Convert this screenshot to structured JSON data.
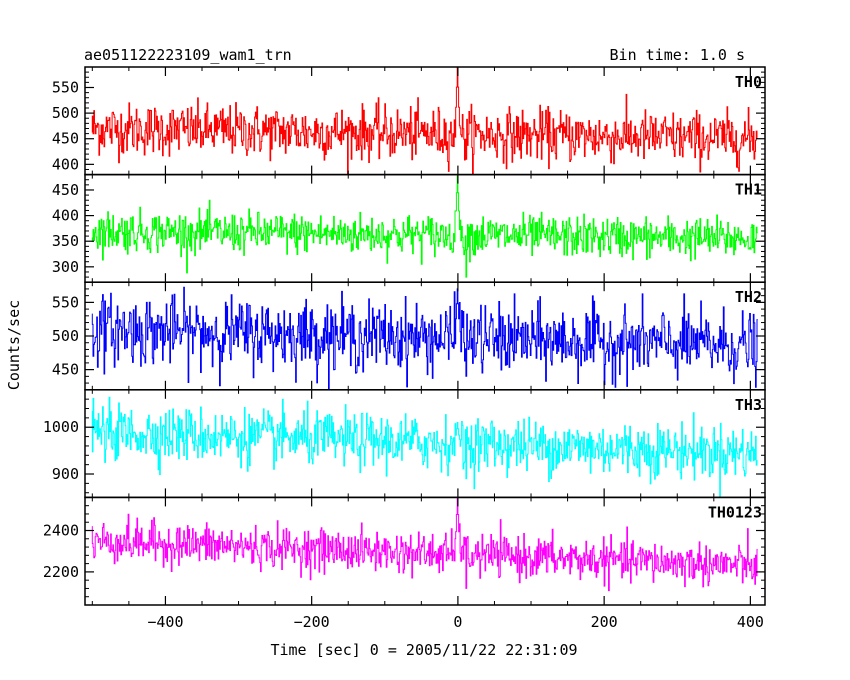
{
  "chart_data": {
    "type": "line",
    "title": "ae051122223109_wam1_trn",
    "subtitle": "Bin time: 1.0 s",
    "xlabel": "Time [sec] 0 = 2005/11/22 22:31:09",
    "ylabel": "Counts/sec",
    "xlim": [
      -510,
      420
    ],
    "x_ticks": [
      -400,
      -200,
      0,
      200,
      400
    ],
    "x_tick_labels": [
      "−400",
      "−200",
      "0",
      "200",
      "400"
    ],
    "x_range": [
      -500,
      410
    ],
    "bin_time": 1.0,
    "panels": [
      {
        "name": "TH0",
        "color": "#ff0000",
        "ylim": [
          380,
          590
        ],
        "y_ticks": [
          400,
          450,
          500,
          550
        ],
        "baseline_start": 470,
        "baseline_end": 450,
        "noise": 28,
        "spike": {
          "x": 0,
          "peak": 590,
          "trough": 410
        }
      },
      {
        "name": "TH1",
        "color": "#00ff00",
        "ylim": [
          270,
          480
        ],
        "y_ticks": [
          300,
          350,
          400,
          450
        ],
        "baseline_start": 370,
        "baseline_end": 355,
        "noise": 22,
        "spike": {
          "x": 0,
          "peak": 480,
          "trough": 280
        }
      },
      {
        "name": "TH2",
        "color": "#0000ff",
        "ylim": [
          420,
          580
        ],
        "y_ticks": [
          450,
          500,
          550
        ],
        "baseline_start": 510,
        "baseline_end": 485,
        "noise": 28,
        "spike": {
          "x": 0,
          "peak": 570,
          "trough": 440
        }
      },
      {
        "name": "TH3",
        "color": "#00ffff",
        "ylim": [
          850,
          1080
        ],
        "y_ticks": [
          900,
          1000
        ],
        "baseline_start": 990,
        "baseline_end": 945,
        "noise": 32,
        "spike": {
          "x": 0,
          "peak": 1010,
          "trough": 890
        }
      },
      {
        "name": "TH0123",
        "color": "#ff00ff",
        "ylim": [
          2040,
          2560
        ],
        "y_ticks": [
          2200,
          2400
        ],
        "baseline_start": 2350,
        "baseline_end": 2230,
        "noise": 55,
        "spike": {
          "x": 0,
          "peak": 2560,
          "trough": 2120
        }
      }
    ]
  }
}
